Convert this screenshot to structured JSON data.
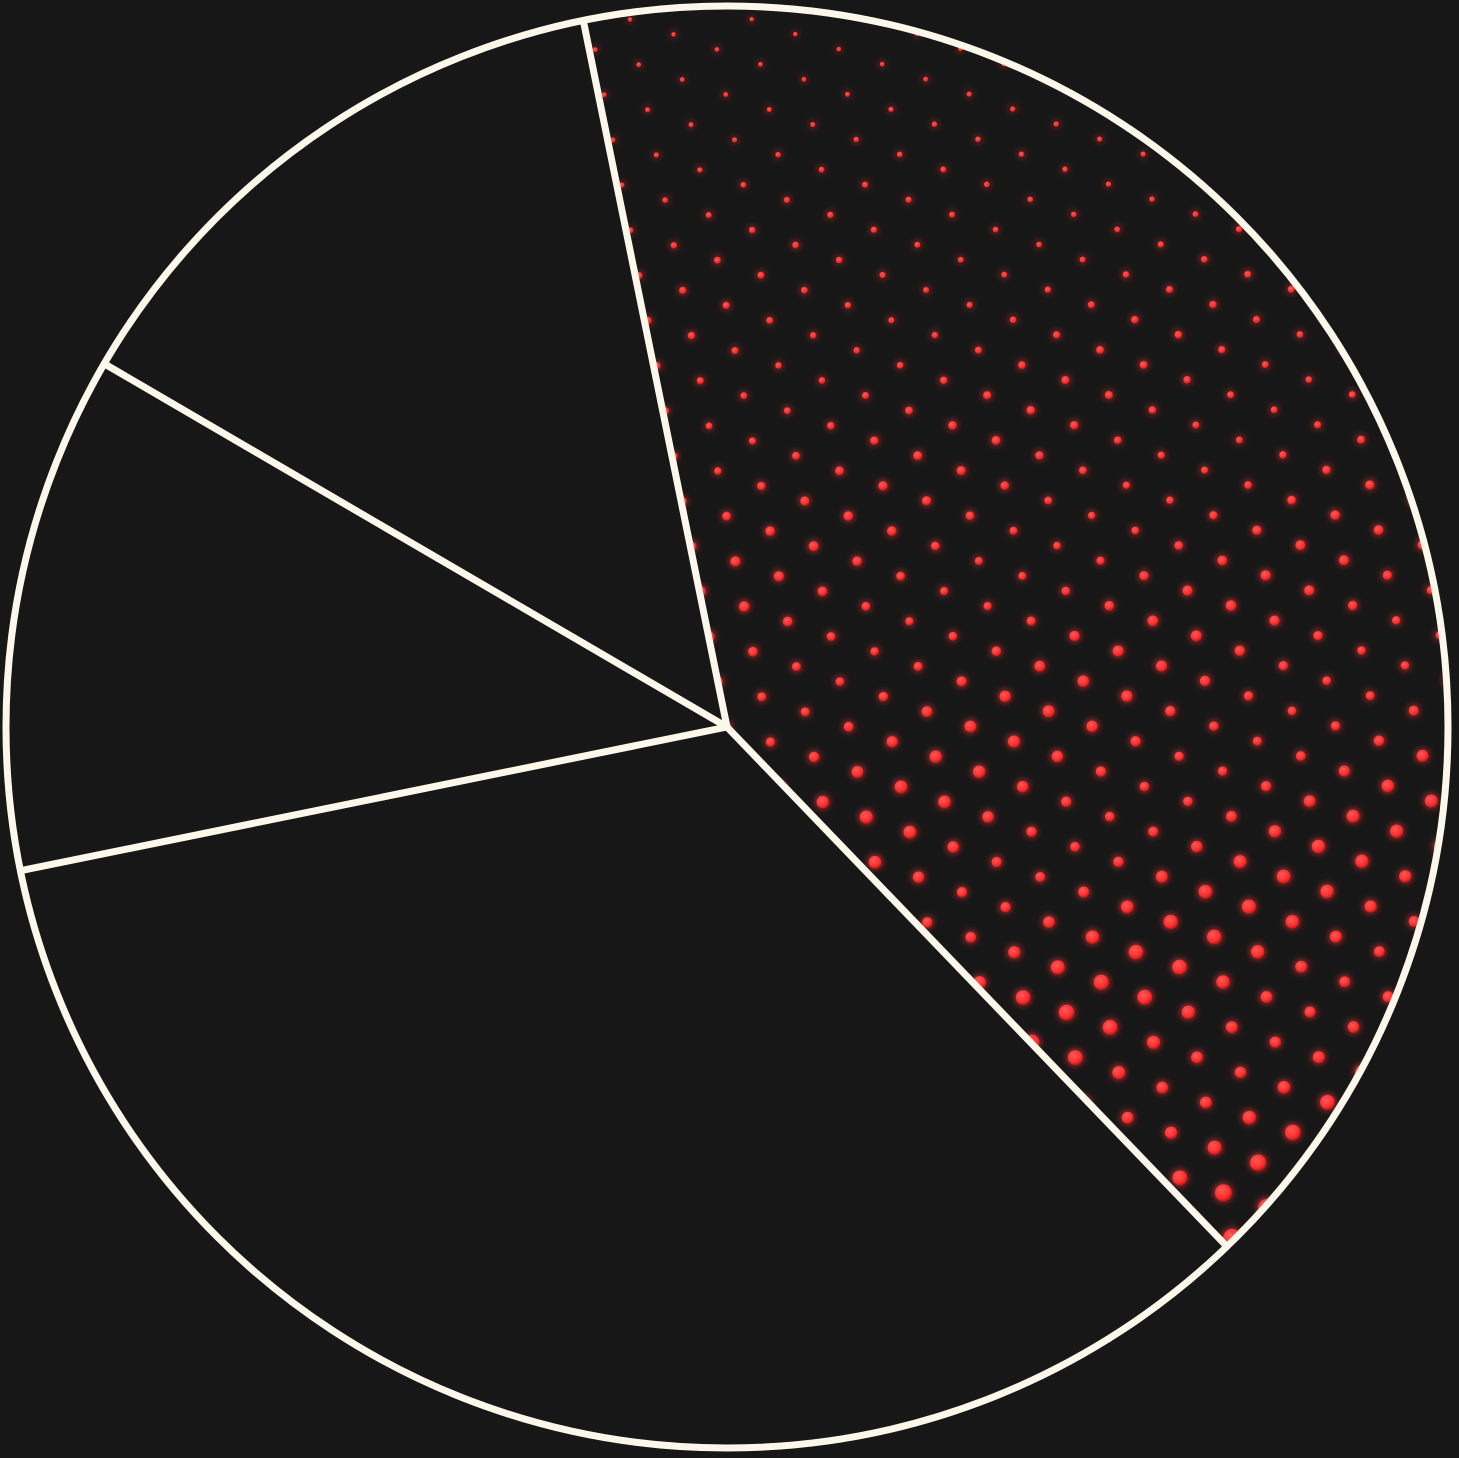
{
  "colors": {
    "background": "#171717",
    "slice_fill": "#171717",
    "stroke": "#fbf7ea",
    "highlight_dots": "#ff3333"
  },
  "chart_data": {
    "type": "pie",
    "title": "",
    "start_angle_deg": -101.5,
    "direction": "clockwise",
    "slices": [
      {
        "label": "",
        "value": 41.0,
        "style": "red-dot-pattern",
        "highlighted": true
      },
      {
        "label": "",
        "value": 34.0,
        "style": "solid-dark",
        "highlighted": false
      },
      {
        "label": "",
        "value": 11.6,
        "style": "solid-dark",
        "highlighted": false
      },
      {
        "label": "",
        "value": 13.4,
        "style": "solid-dark",
        "highlighted": false
      }
    ],
    "legend": "none",
    "grid": false
  }
}
